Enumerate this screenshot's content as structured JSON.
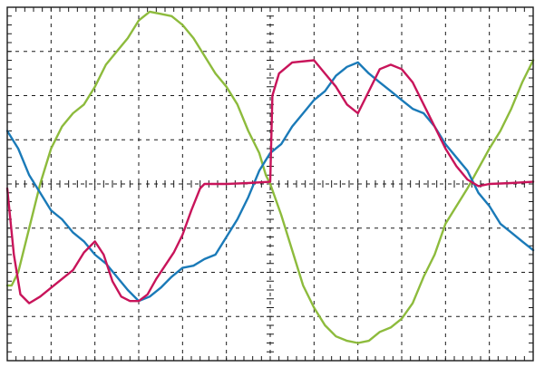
{
  "screen": {
    "background": "#ffffff",
    "grid": {
      "horizontal_divisions": 12,
      "vertical_divisions": 8,
      "minor_ticks_per_division": 5,
      "grid_style": "dashed",
      "grid_color": "#1a1a1a"
    }
  },
  "chart_data": {
    "type": "line",
    "title": "",
    "xlabel": "",
    "ylabel": "",
    "xlim": [
      0,
      12
    ],
    "ylim": [
      -4,
      4
    ],
    "grid": true,
    "legend": "none",
    "series": [
      {
        "color": "#8dbb3c",
        "points": [
          [
            0.0,
            -2.3
          ],
          [
            0.1,
            -2.3
          ],
          [
            0.25,
            -2.0
          ],
          [
            0.5,
            -1.0
          ],
          [
            0.75,
            0.0
          ],
          [
            1.0,
            0.8
          ],
          [
            1.25,
            1.3
          ],
          [
            1.5,
            1.6
          ],
          [
            1.75,
            1.8
          ],
          [
            2.0,
            2.2
          ],
          [
            2.25,
            2.7
          ],
          [
            2.5,
            3.0
          ],
          [
            2.75,
            3.3
          ],
          [
            3.0,
            3.7
          ],
          [
            3.25,
            3.9
          ],
          [
            3.5,
            3.85
          ],
          [
            3.75,
            3.8
          ],
          [
            4.0,
            3.6
          ],
          [
            4.25,
            3.3
          ],
          [
            4.5,
            2.9
          ],
          [
            4.75,
            2.5
          ],
          [
            5.0,
            2.2
          ],
          [
            5.25,
            1.8
          ],
          [
            5.5,
            1.2
          ],
          [
            5.75,
            0.7
          ],
          [
            5.9,
            0.2
          ],
          [
            6.0,
            0.0
          ],
          [
            6.25,
            -0.7
          ],
          [
            6.5,
            -1.5
          ],
          [
            6.75,
            -2.3
          ],
          [
            7.0,
            -2.8
          ],
          [
            7.25,
            -3.2
          ],
          [
            7.5,
            -3.45
          ],
          [
            7.75,
            -3.55
          ],
          [
            8.0,
            -3.6
          ],
          [
            8.25,
            -3.55
          ],
          [
            8.5,
            -3.35
          ],
          [
            8.75,
            -3.25
          ],
          [
            9.0,
            -3.05
          ],
          [
            9.25,
            -2.7
          ],
          [
            9.5,
            -2.1
          ],
          [
            9.75,
            -1.6
          ],
          [
            10.0,
            -0.9
          ],
          [
            10.25,
            -0.5
          ],
          [
            10.5,
            -0.1
          ],
          [
            10.75,
            0.35
          ],
          [
            11.0,
            0.8
          ],
          [
            11.25,
            1.2
          ],
          [
            11.5,
            1.7
          ],
          [
            11.75,
            2.3
          ],
          [
            12.0,
            2.8
          ]
        ]
      },
      {
        "color": "#1a7ab8",
        "points": [
          [
            0.0,
            1.2
          ],
          [
            0.25,
            0.8
          ],
          [
            0.5,
            0.2
          ],
          [
            0.75,
            -0.2
          ],
          [
            1.0,
            -0.6
          ],
          [
            1.25,
            -0.8
          ],
          [
            1.5,
            -1.1
          ],
          [
            1.75,
            -1.3
          ],
          [
            2.0,
            -1.6
          ],
          [
            2.25,
            -1.8
          ],
          [
            2.5,
            -2.1
          ],
          [
            2.75,
            -2.4
          ],
          [
            3.0,
            -2.65
          ],
          [
            3.25,
            -2.55
          ],
          [
            3.5,
            -2.35
          ],
          [
            3.75,
            -2.1
          ],
          [
            4.0,
            -1.9
          ],
          [
            4.25,
            -1.85
          ],
          [
            4.5,
            -1.7
          ],
          [
            4.75,
            -1.6
          ],
          [
            5.0,
            -1.2
          ],
          [
            5.25,
            -0.8
          ],
          [
            5.5,
            -0.3
          ],
          [
            5.75,
            0.3
          ],
          [
            6.0,
            0.7
          ],
          [
            6.25,
            0.9
          ],
          [
            6.5,
            1.3
          ],
          [
            6.75,
            1.6
          ],
          [
            7.0,
            1.9
          ],
          [
            7.25,
            2.1
          ],
          [
            7.5,
            2.45
          ],
          [
            7.75,
            2.65
          ],
          [
            8.0,
            2.75
          ],
          [
            8.25,
            2.5
          ],
          [
            8.5,
            2.3
          ],
          [
            8.75,
            2.1
          ],
          [
            9.0,
            1.9
          ],
          [
            9.25,
            1.7
          ],
          [
            9.5,
            1.6
          ],
          [
            9.75,
            1.3
          ],
          [
            10.0,
            0.9
          ],
          [
            10.25,
            0.6
          ],
          [
            10.5,
            0.3
          ],
          [
            10.75,
            -0.2
          ],
          [
            11.0,
            -0.5
          ],
          [
            11.25,
            -0.9
          ],
          [
            11.5,
            -1.1
          ],
          [
            11.75,
            -1.3
          ],
          [
            12.0,
            -1.5
          ]
        ]
      },
      {
        "color": "#c8145a",
        "points": [
          [
            0.0,
            -0.1
          ],
          [
            0.15,
            -1.6
          ],
          [
            0.3,
            -2.5
          ],
          [
            0.5,
            -2.7
          ],
          [
            0.75,
            -2.55
          ],
          [
            1.0,
            -2.35
          ],
          [
            1.25,
            -2.15
          ],
          [
            1.5,
            -1.95
          ],
          [
            1.75,
            -1.55
          ],
          [
            2.0,
            -1.3
          ],
          [
            2.2,
            -1.6
          ],
          [
            2.4,
            -2.2
          ],
          [
            2.6,
            -2.55
          ],
          [
            2.8,
            -2.65
          ],
          [
            3.0,
            -2.65
          ],
          [
            3.2,
            -2.5
          ],
          [
            3.4,
            -2.15
          ],
          [
            3.6,
            -1.85
          ],
          [
            3.8,
            -1.55
          ],
          [
            4.0,
            -1.15
          ],
          [
            4.2,
            -0.6
          ],
          [
            4.4,
            -0.1
          ],
          [
            4.5,
            0.0
          ],
          [
            5.0,
            0.0
          ],
          [
            5.5,
            0.02
          ],
          [
            6.0,
            0.05
          ],
          [
            6.05,
            2.0
          ],
          [
            6.2,
            2.5
          ],
          [
            6.5,
            2.75
          ],
          [
            7.0,
            2.8
          ],
          [
            7.25,
            2.5
          ],
          [
            7.5,
            2.2
          ],
          [
            7.75,
            1.8
          ],
          [
            8.0,
            1.6
          ],
          [
            8.25,
            2.1
          ],
          [
            8.5,
            2.6
          ],
          [
            8.75,
            2.7
          ],
          [
            9.0,
            2.6
          ],
          [
            9.25,
            2.3
          ],
          [
            9.5,
            1.8
          ],
          [
            9.75,
            1.3
          ],
          [
            10.0,
            0.8
          ],
          [
            10.25,
            0.4
          ],
          [
            10.5,
            0.1
          ],
          [
            10.75,
            -0.05
          ],
          [
            11.0,
            0.0
          ],
          [
            11.5,
            0.02
          ],
          [
            12.0,
            0.05
          ]
        ]
      }
    ]
  }
}
